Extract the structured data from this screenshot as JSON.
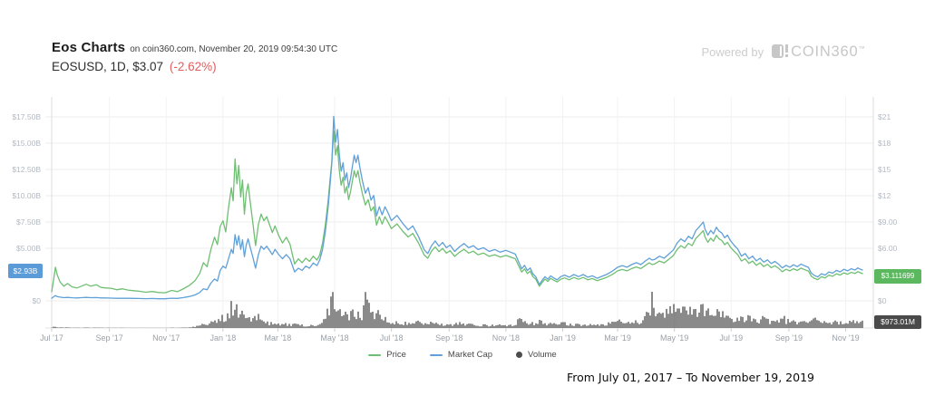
{
  "header": {
    "title": "Eos Charts",
    "title_suffix": "on coin360.com, November 20, 2019 09:54:30 UTC",
    "symbol_line": "EOSUSD, 1D, $3.07",
    "change": "(-2.62%)",
    "change_color": "#e05e5e"
  },
  "powered_by": {
    "label": "Powered by",
    "brand": "COIN360",
    "tm": "™"
  },
  "legend": [
    {
      "label": "Price",
      "color": "#6fbf72",
      "marker": "line"
    },
    {
      "label": "Market Cap",
      "color": "#60a0d8",
      "marker": "line"
    },
    {
      "label": "Volume",
      "color": "#4d4d4d",
      "marker": "dot"
    }
  ],
  "badges": {
    "market_cap": {
      "text": "$2.93B",
      "color": "#5b9bd8"
    },
    "price": {
      "text": "$3.111699",
      "color": "#5cb85f"
    },
    "volume": {
      "text": "$973.01M",
      "color": "#4a4a4a"
    }
  },
  "footer": {
    "range_text": "From July 01, 2017 – To November 19, 2019"
  },
  "chart_data": {
    "type": "line",
    "title": "EOSUSD daily price, market cap and volume",
    "series_meta": [
      {
        "name": "Price",
        "axis": "right",
        "unit": "USD",
        "color": "#6fbf72"
      },
      {
        "name": "Market Cap",
        "axis": "left",
        "unit": "USD billions",
        "color": "#60a0d8"
      },
      {
        "name": "Volume",
        "axis": "bottom",
        "unit": "USD millions",
        "color": "#575757"
      }
    ],
    "x_ticks": [
      {
        "day": 0,
        "label": "Jul '17"
      },
      {
        "day": 62,
        "label": "Sep '17"
      },
      {
        "day": 123,
        "label": "Nov '17"
      },
      {
        "day": 184,
        "label": "Jan '18"
      },
      {
        "day": 243,
        "label": "Mar '18"
      },
      {
        "day": 304,
        "label": "May '18"
      },
      {
        "day": 365,
        "label": "Jul '18"
      },
      {
        "day": 427,
        "label": "Sep '18"
      },
      {
        "day": 488,
        "label": "Nov '18"
      },
      {
        "day": 549,
        "label": "Jan '19"
      },
      {
        "day": 608,
        "label": "Mar '19"
      },
      {
        "day": 669,
        "label": "May '19"
      },
      {
        "day": 730,
        "label": "Jul '19"
      },
      {
        "day": 792,
        "label": "Sep '19"
      },
      {
        "day": 853,
        "label": "Nov '19"
      }
    ],
    "left_axis": {
      "unit": "USD billions",
      "ticks": [
        {
          "v": 17.5,
          "label": "$17.50B"
        },
        {
          "v": 15,
          "label": "$15.00B"
        },
        {
          "v": 12.5,
          "label": "$12.50B"
        },
        {
          "v": 10,
          "label": "$10.00B"
        },
        {
          "v": 7.5,
          "label": "$7.50B"
        },
        {
          "v": 5,
          "label": "$5.00B"
        },
        {
          "v": 0,
          "label": "$0"
        }
      ]
    },
    "right_axis": {
      "unit": "USD",
      "ticks": [
        {
          "v": 21,
          "label": "$21"
        },
        {
          "v": 18,
          "label": "$18"
        },
        {
          "v": 15,
          "label": "$15"
        },
        {
          "v": 12,
          "label": "$12"
        },
        {
          "v": 9,
          "label": "$9.00"
        },
        {
          "v": 6,
          "label": "$6.00"
        },
        {
          "v": 0,
          "label": "$0"
        }
      ]
    },
    "current": {
      "price": 3.111699,
      "market_cap_busd": 2.93,
      "volume_musd": 973.01
    },
    "points_format": [
      "day_from_2017_07_01",
      "price_usd",
      "market_cap_busd",
      "volume_musd"
    ],
    "points": [
      [
        0,
        1.05,
        0.25,
        40
      ],
      [
        2,
        2.4,
        0.38,
        150
      ],
      [
        4,
        3.84,
        0.5,
        300
      ],
      [
        6,
        2.94,
        0.4,
        160
      ],
      [
        9,
        2.16,
        0.35,
        90
      ],
      [
        13,
        1.68,
        0.3,
        60
      ],
      [
        17,
        1.98,
        0.33,
        80
      ],
      [
        22,
        1.59,
        0.29,
        50
      ],
      [
        27,
        1.47,
        0.28,
        45
      ],
      [
        32,
        1.68,
        0.3,
        55
      ],
      [
        37,
        1.89,
        0.33,
        60
      ],
      [
        42,
        1.68,
        0.3,
        45
      ],
      [
        48,
        1.83,
        0.31,
        50
      ],
      [
        53,
        1.53,
        0.28,
        40
      ],
      [
        58,
        1.47,
        0.28,
        35
      ],
      [
        64,
        1.44,
        0.26,
        35
      ],
      [
        70,
        1.26,
        0.24,
        30
      ],
      [
        76,
        1.38,
        0.25,
        35
      ],
      [
        82,
        1.23,
        0.24,
        28
      ],
      [
        88,
        1.16,
        0.23,
        25
      ],
      [
        94,
        1.1,
        0.22,
        25
      ],
      [
        101,
        0.98,
        0.21,
        22
      ],
      [
        108,
        1.07,
        0.22,
        24
      ],
      [
        115,
        0.95,
        0.2,
        20
      ],
      [
        122,
        0.92,
        0.2,
        22
      ],
      [
        129,
        1.19,
        0.25,
        45
      ],
      [
        135,
        1.04,
        0.23,
        30
      ],
      [
        141,
        1.34,
        0.3,
        60
      ],
      [
        148,
        1.77,
        0.41,
        110
      ],
      [
        154,
        2.31,
        0.56,
        190
      ],
      [
        159,
        3.12,
        0.79,
        340
      ],
      [
        163,
        4.35,
        1.15,
        600
      ],
      [
        167,
        3.9,
        1.05,
        420
      ],
      [
        171,
        5.85,
        1.68,
        900
      ],
      [
        175,
        7.26,
        2.08,
        1100
      ],
      [
        178,
        6.42,
        1.88,
        800
      ],
      [
        181,
        8.49,
        2.9,
        1600
      ],
      [
        184,
        9.15,
        3.3,
        1800
      ],
      [
        187,
        7.86,
        3.1,
        1100
      ],
      [
        190,
        10.65,
        4.0,
        2300
      ],
      [
        193,
        12.9,
        4.9,
        2900
      ],
      [
        195,
        11.4,
        4.5,
        2100
      ],
      [
        197,
        16.2,
        6.3,
        3400
      ],
      [
        199,
        13.35,
        5.3,
        2400
      ],
      [
        201,
        15.45,
        6.2,
        2800
      ],
      [
        203,
        11.85,
        4.9,
        1900
      ],
      [
        205,
        13.8,
        5.8,
        2200
      ],
      [
        207,
        9.9,
        4.2,
        1700
      ],
      [
        209,
        12.3,
        5.3,
        2000
      ],
      [
        211,
        13.35,
        5.9,
        1900
      ],
      [
        213,
        11.55,
        5.2,
        1500
      ],
      [
        216,
        9.0,
        4.2,
        1200
      ],
      [
        219,
        6.3,
        3.1,
        1400
      ],
      [
        222,
        8.7,
        4.4,
        1600
      ],
      [
        225,
        9.9,
        5.2,
        1500
      ],
      [
        228,
        9.15,
        4.9,
        1000
      ],
      [
        231,
        9.6,
        5.2,
        900
      ],
      [
        234,
        8.7,
        4.8,
        700
      ],
      [
        237,
        7.8,
        4.4,
        650
      ],
      [
        240,
        8.55,
        4.9,
        700
      ],
      [
        244,
        7.44,
        4.4,
        600
      ],
      [
        248,
        6.6,
        4.0,
        700
      ],
      [
        252,
        7.26,
        4.4,
        500
      ],
      [
        256,
        6.45,
        4.0,
        450
      ],
      [
        261,
        4.2,
        2.75,
        600
      ],
      [
        265,
        4.8,
        3.1,
        450
      ],
      [
        269,
        4.35,
        2.9,
        400
      ],
      [
        273,
        4.86,
        3.3,
        380
      ],
      [
        277,
        4.5,
        3.1,
        350
      ],
      [
        281,
        5.1,
        3.6,
        400
      ],
      [
        285,
        4.65,
        3.35,
        380
      ],
      [
        288,
        5.25,
        3.9,
        500
      ],
      [
        291,
        6.6,
        4.9,
        800
      ],
      [
        294,
        8.7,
        6.6,
        1500
      ],
      [
        297,
        11.4,
        8.9,
        2500
      ],
      [
        299,
        13.8,
        11.0,
        3300
      ],
      [
        301,
        15.9,
        13.1,
        3800
      ],
      [
        303,
        19.35,
        17.55,
        4400
      ],
      [
        305,
        16.65,
        15.1,
        3000
      ],
      [
        307,
        17.7,
        16.3,
        2600
      ],
      [
        309,
        14.85,
        13.85,
        2200
      ],
      [
        311,
        13.2,
        12.33,
        1900
      ],
      [
        313,
        14.1,
        13.15,
        2000
      ],
      [
        315,
        12.3,
        11.48,
        1700
      ],
      [
        317,
        13.05,
        12.18,
        1800
      ],
      [
        319,
        11.55,
        10.78,
        1600
      ],
      [
        321,
        12.45,
        11.63,
        1700
      ],
      [
        323,
        13.65,
        12.75,
        2100
      ],
      [
        325,
        14.85,
        13.85,
        2400
      ],
      [
        327,
        14.1,
        13.15,
        1800
      ],
      [
        329,
        14.85,
        13.85,
        2000
      ],
      [
        331,
        13.65,
        12.75,
        1600
      ],
      [
        334,
        12.15,
        11.35,
        1500
      ],
      [
        337,
        10.95,
        10.23,
        5000
      ],
      [
        340,
        11.55,
        10.78,
        3500
      ],
      [
        343,
        10.26,
        9.58,
        2200
      ],
      [
        346,
        10.74,
        10.03,
        1800
      ],
      [
        349,
        8.64,
        8.08,
        2600
      ],
      [
        352,
        9.6,
        8.95,
        1900
      ],
      [
        355,
        8.76,
        8.18,
        1400
      ],
      [
        358,
        9.6,
        8.95,
        1500
      ],
      [
        361,
        9.06,
        8.45,
        1200
      ],
      [
        365,
        8.24,
        7.63,
        1000
      ],
      [
        371,
        8.78,
        8.13,
        900
      ],
      [
        377,
        7.97,
        7.38,
        800
      ],
      [
        383,
        7.29,
        6.75,
        750
      ],
      [
        388,
        7.7,
        7.13,
        700
      ],
      [
        394,
        6.62,
        6.13,
        800
      ],
      [
        400,
        5.27,
        4.88,
        900
      ],
      [
        404,
        4.86,
        4.5,
        800
      ],
      [
        408,
        5.67,
        5.25,
        700
      ],
      [
        412,
        6.16,
        5.7,
        650
      ],
      [
        416,
        5.62,
        5.2,
        600
      ],
      [
        420,
        5.99,
        5.55,
        550
      ],
      [
        424,
        5.45,
        5.05,
        500
      ],
      [
        428,
        5.72,
        5.3,
        550
      ],
      [
        433,
        5.08,
        4.7,
        600
      ],
      [
        438,
        5.54,
        5.13,
        700
      ],
      [
        443,
        5.89,
        5.45,
        600
      ],
      [
        448,
        5.45,
        5.05,
        500
      ],
      [
        453,
        5.67,
        5.25,
        450
      ],
      [
        458,
        5.27,
        4.88,
        400
      ],
      [
        464,
        5.45,
        5.05,
        400
      ],
      [
        470,
        5.08,
        4.7,
        380
      ],
      [
        476,
        5.27,
        4.88,
        350
      ],
      [
        482,
        5.0,
        4.63,
        380
      ],
      [
        488,
        5.18,
        4.8,
        400
      ],
      [
        493,
        5.0,
        4.63,
        380
      ],
      [
        498,
        4.81,
        4.45,
        400
      ],
      [
        502,
        3.92,
        3.63,
        1200
      ],
      [
        505,
        3.29,
        3.05,
        1400
      ],
      [
        508,
        3.65,
        3.38,
        900
      ],
      [
        511,
        3.11,
        2.88,
        800
      ],
      [
        514,
        3.38,
        3.13,
        700
      ],
      [
        517,
        2.75,
        2.55,
        800
      ],
      [
        520,
        2.48,
        2.3,
        700
      ],
      [
        524,
        1.67,
        1.55,
        900
      ],
      [
        527,
        2.11,
        1.95,
        800
      ],
      [
        530,
        2.48,
        2.3,
        700
      ],
      [
        533,
        2.21,
        2.05,
        600
      ],
      [
        536,
        2.57,
        2.38,
        650
      ],
      [
        539,
        2.38,
        2.2,
        550
      ],
      [
        543,
        2.16,
        2.0,
        500
      ],
      [
        547,
        2.46,
        2.3,
        600
      ],
      [
        551,
        2.62,
        2.45,
        650
      ],
      [
        556,
        2.4,
        2.25,
        500
      ],
      [
        561,
        2.67,
        2.5,
        550
      ],
      [
        566,
        2.46,
        2.3,
        450
      ],
      [
        571,
        2.67,
        2.5,
        500
      ],
      [
        576,
        2.4,
        2.25,
        420
      ],
      [
        581,
        2.54,
        2.38,
        450
      ],
      [
        586,
        2.3,
        2.15,
        400
      ],
      [
        591,
        2.48,
        2.33,
        450
      ],
      [
        596,
        2.67,
        2.5,
        550
      ],
      [
        601,
        2.94,
        2.75,
        700
      ],
      [
        605,
        3.2,
        3.0,
        900
      ],
      [
        608,
        3.42,
        3.2,
        1000
      ],
      [
        613,
        3.58,
        3.35,
        900
      ],
      [
        618,
        3.42,
        3.2,
        800
      ],
      [
        623,
        3.68,
        3.45,
        900
      ],
      [
        628,
        3.87,
        3.63,
        1000
      ],
      [
        633,
        3.68,
        3.45,
        900
      ],
      [
        638,
        4.06,
        3.8,
        1400
      ],
      [
        642,
        4.33,
        4.05,
        2600
      ],
      [
        645,
        4.14,
        3.88,
        4700
      ],
      [
        648,
        4.22,
        3.95,
        2400
      ],
      [
        653,
        4.54,
        4.25,
        2600
      ],
      [
        658,
        4.33,
        4.05,
        2000
      ],
      [
        663,
        4.75,
        4.45,
        2200
      ],
      [
        668,
        5.18,
        4.85,
        2600
      ],
      [
        672,
        5.87,
        5.5,
        3200
      ],
      [
        676,
        6.3,
        5.9,
        3000
      ],
      [
        680,
        6.01,
        5.63,
        2400
      ],
      [
        684,
        6.57,
        6.15,
        2600
      ],
      [
        688,
        6.3,
        5.9,
        2200
      ],
      [
        692,
        7.13,
        6.68,
        2800
      ],
      [
        696,
        7.56,
        7.08,
        3000
      ],
      [
        700,
        8.01,
        7.5,
        3500
      ],
      [
        702,
        7.26,
        6.8,
        2600
      ],
      [
        705,
        6.68,
        6.25,
        2200
      ],
      [
        708,
        7.16,
        6.7,
        2000
      ],
      [
        711,
        6.81,
        6.38,
        1900
      ],
      [
        714,
        7.48,
        7.0,
        2100
      ],
      [
        717,
        7.08,
        6.63,
        1800
      ],
      [
        720,
        6.89,
        6.45,
        2000
      ],
      [
        723,
        6.41,
        6.0,
        1700
      ],
      [
        726,
        6.68,
        6.25,
        1800
      ],
      [
        729,
        6.14,
        5.75,
        1600
      ],
      [
        733,
        5.67,
        5.3,
        1500
      ],
      [
        737,
        5.27,
        4.93,
        1400
      ],
      [
        741,
        4.54,
        4.25,
        1600
      ],
      [
        745,
        4.81,
        4.5,
        1300
      ],
      [
        749,
        4.27,
        4.0,
        1400
      ],
      [
        753,
        4.54,
        4.25,
        1200
      ],
      [
        757,
        4.06,
        3.8,
        1300
      ],
      [
        761,
        4.33,
        4.05,
        1100
      ],
      [
        765,
        3.92,
        3.68,
        1500
      ],
      [
        769,
        4.17,
        3.9,
        1000
      ],
      [
        773,
        3.79,
        3.55,
        900
      ],
      [
        777,
        4.0,
        3.75,
        1000
      ],
      [
        781,
        3.71,
        3.48,
        850
      ],
      [
        785,
        3.33,
        3.13,
        1600
      ],
      [
        789,
        3.6,
        3.38,
        1000
      ],
      [
        793,
        3.42,
        3.2,
        900
      ],
      [
        797,
        3.66,
        3.43,
        850
      ],
      [
        801,
        3.47,
        3.25,
        800
      ],
      [
        805,
        3.73,
        3.5,
        900
      ],
      [
        809,
        3.55,
        3.33,
        800
      ],
      [
        813,
        3.39,
        3.18,
        750
      ],
      [
        816,
        2.83,
        2.65,
        1400
      ],
      [
        819,
        2.59,
        2.43,
        1200
      ],
      [
        823,
        2.42,
        2.28,
        900
      ],
      [
        827,
        2.75,
        2.58,
        800
      ],
      [
        831,
        2.62,
        2.45,
        750
      ],
      [
        835,
        2.94,
        2.75,
        800
      ],
      [
        839,
        2.8,
        2.63,
        700
      ],
      [
        843,
        3.09,
        2.9,
        850
      ],
      [
        847,
        2.94,
        2.75,
        750
      ],
      [
        851,
        3.2,
        3.0,
        900
      ],
      [
        855,
        3.04,
        2.85,
        800
      ],
      [
        859,
        3.25,
        3.05,
        850
      ],
      [
        863,
        3.12,
        2.93,
        800
      ],
      [
        866,
        3.33,
        3.13,
        850
      ],
      [
        869,
        3.2,
        3.0,
        900
      ],
      [
        871,
        3.11,
        2.93,
        973
      ]
    ]
  }
}
